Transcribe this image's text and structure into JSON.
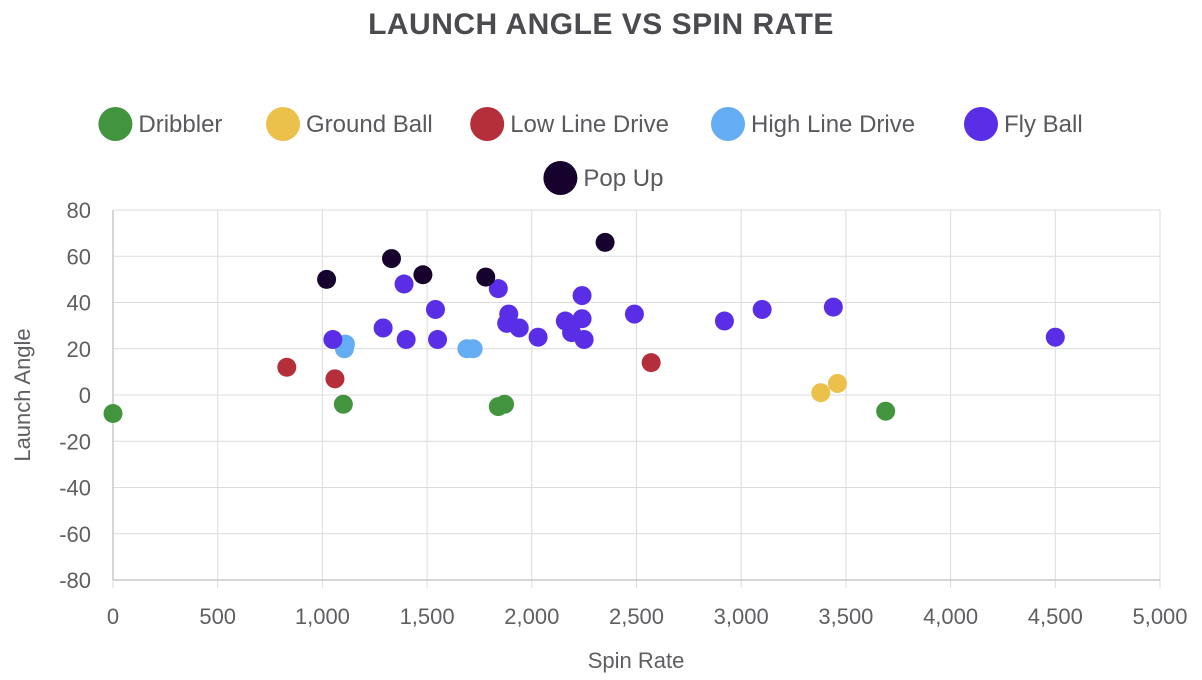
{
  "chart_data": {
    "type": "scatter",
    "title": "LAUNCH ANGLE VS SPIN RATE",
    "xlabel": "Spin Rate",
    "ylabel": "Launch Angle",
    "xlim": [
      0,
      5000
    ],
    "ylim": [
      -80,
      80
    ],
    "x_ticks": [
      "0",
      "500",
      "1,000",
      "1,500",
      "2,000",
      "2,500",
      "3,000",
      "3,500",
      "4,000",
      "4,500",
      "5,000"
    ],
    "y_ticks": [
      "80",
      "60",
      "40",
      "20",
      "0",
      "-20",
      "-40",
      "-60",
      "-80"
    ],
    "grid": true,
    "legend_position": "top",
    "series": [
      {
        "name": "Dribbler",
        "color": "#43943f",
        "points": [
          [
            0,
            -8
          ],
          [
            1100,
            -4
          ],
          [
            1840,
            -5
          ],
          [
            1870,
            -4
          ],
          [
            3690,
            -7
          ]
        ]
      },
      {
        "name": "Ground Ball",
        "color": "#ecc14b",
        "points": [
          [
            3380,
            1
          ],
          [
            3460,
            5
          ]
        ]
      },
      {
        "name": "Low Line Drive",
        "color": "#b52f3a",
        "points": [
          [
            830,
            12
          ],
          [
            1060,
            7
          ],
          [
            2570,
            14
          ]
        ]
      },
      {
        "name": "High Line Drive",
        "color": "#64adf2",
        "points": [
          [
            1110,
            22
          ],
          [
            1105,
            20
          ],
          [
            1690,
            20
          ],
          [
            1720,
            20
          ]
        ]
      },
      {
        "name": "Fly Ball",
        "color": "#5a2ee6",
        "points": [
          [
            1050,
            24
          ],
          [
            1290,
            29
          ],
          [
            1390,
            48
          ],
          [
            1400,
            24
          ],
          [
            1540,
            37
          ],
          [
            1550,
            24
          ],
          [
            1840,
            46
          ],
          [
            1880,
            31
          ],
          [
            1890,
            35
          ],
          [
            1940,
            29
          ],
          [
            2030,
            25
          ],
          [
            2160,
            32
          ],
          [
            2190,
            27
          ],
          [
            2240,
            43
          ],
          [
            2240,
            33
          ],
          [
            2250,
            24
          ],
          [
            2490,
            35
          ],
          [
            2920,
            32
          ],
          [
            3100,
            37
          ],
          [
            3440,
            38
          ],
          [
            4500,
            25
          ]
        ]
      },
      {
        "name": "Pop Up",
        "color": "#17022e",
        "points": [
          [
            1020,
            50
          ],
          [
            1330,
            59
          ],
          [
            1480,
            52
          ],
          [
            1780,
            51
          ],
          [
            2350,
            66
          ]
        ]
      }
    ]
  }
}
